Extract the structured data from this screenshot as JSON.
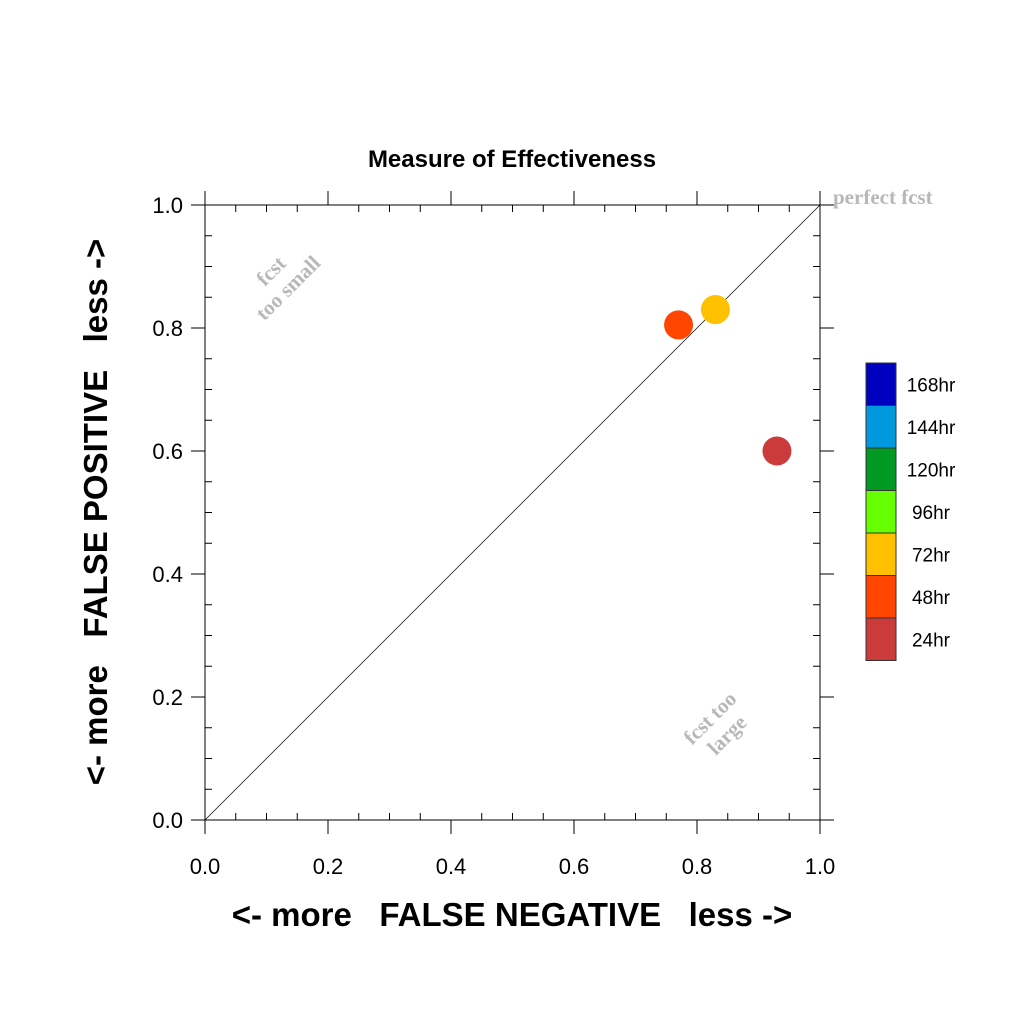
{
  "chart_data": {
    "type": "scatter",
    "title": "Measure of Effectiveness",
    "xlabel": "<- more   FALSE NEGATIVE   less ->",
    "ylabel": "<- more   FALSE POSITIVE   less ->",
    "xlim": [
      0.0,
      1.0
    ],
    "ylim": [
      0.0,
      1.0
    ],
    "xticks": [
      "0.0",
      "0.2",
      "0.4",
      "0.6",
      "0.8",
      "1.0"
    ],
    "yticks": [
      "0.0",
      "0.2",
      "0.4",
      "0.6",
      "0.8",
      "1.0"
    ],
    "grid": false,
    "reference_line": "diagonal",
    "annotations": {
      "perfect": "perfect fcst",
      "too_small_1": "fcst",
      "too_small_2": "too small",
      "too_large_1": "fcst too",
      "too_large_2": "large"
    },
    "points": [
      {
        "lead": "24hr",
        "x": 0.93,
        "y": 0.6,
        "color": "#cc3b3b"
      },
      {
        "lead": "48hr",
        "x": 0.77,
        "y": 0.805,
        "color": "#ff4500"
      },
      {
        "lead": "72hr",
        "x": 0.83,
        "y": 0.83,
        "color": "#ffc000"
      }
    ],
    "legend": {
      "placement": "right",
      "items": [
        {
          "label": "168hr",
          "color": "#0000c0"
        },
        {
          "label": "144hr",
          "color": "#0099dd"
        },
        {
          "label": "120hr",
          "color": "#009922"
        },
        {
          "label": "96hr",
          "color": "#66ff00"
        },
        {
          "label": "72hr",
          "color": "#ffc000"
        },
        {
          "label": "48hr",
          "color": "#ff4500"
        },
        {
          "label": "24hr",
          "color": "#cc3b3b"
        }
      ]
    }
  }
}
